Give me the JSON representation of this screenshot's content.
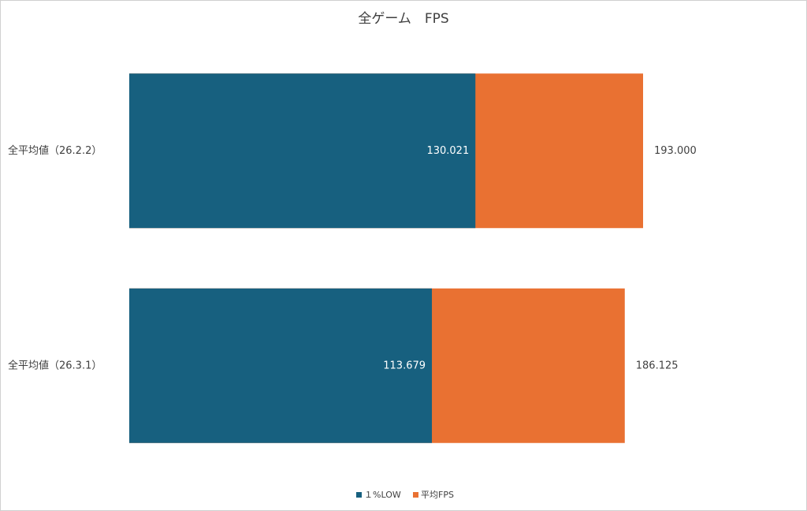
{
  "chart_data": {
    "type": "bar",
    "orientation": "horizontal",
    "overlap": true,
    "title": "全ゲーム　FPS",
    "categories": [
      "全平均値（26.2.2）",
      "全平均値（26.3.1）"
    ],
    "series": [
      {
        "name": "１%LOW",
        "color": "#17607f",
        "values": [
          130.021,
          113.679
        ],
        "value_labels": [
          "130.021",
          "113.679"
        ]
      },
      {
        "name": "平均FPS",
        "color": "#e97132",
        "values": [
          193,
          186.125
        ],
        "value_labels": [
          "193.000",
          "186.125"
        ]
      }
    ],
    "legend": "bottom"
  }
}
